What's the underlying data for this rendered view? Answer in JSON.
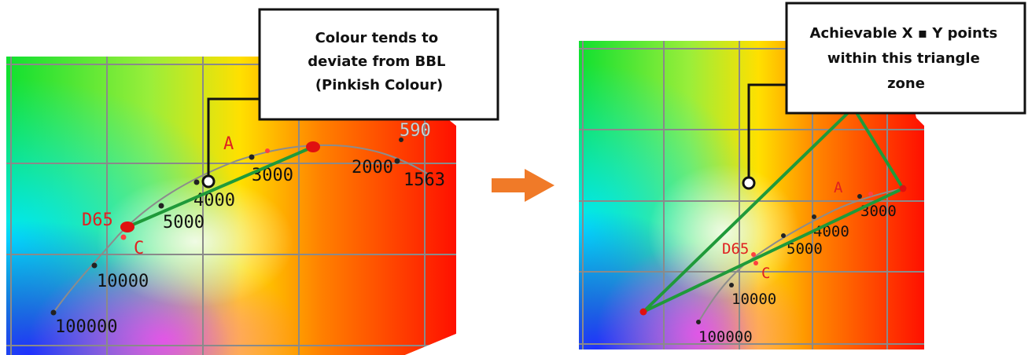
{
  "left_panel": {
    "callout": [
      "Colour tends to",
      "deviate from BBL",
      "(Pinkish Colour)"
    ],
    "labels": {
      "wl_590": "590",
      "wl_1563": "1563",
      "temp_2000": "2000",
      "temp_3000": "3000",
      "temp_4000": "4000",
      "temp_5000": "5000",
      "temp_10000": "10000",
      "temp_100000": "100000",
      "point_a": "A",
      "point_d65": "D65",
      "point_c": "C"
    }
  },
  "right_panel": {
    "callout": [
      "Achievable X ▪ Y points",
      "within this triangle",
      "zone"
    ],
    "labels": {
      "temp_3000": "3000",
      "temp_4000": "4000",
      "temp_5000": "5000",
      "temp_10000": "10000",
      "temp_100000": "100000",
      "point_a": "A",
      "point_d65": "D65",
      "point_c": "C"
    }
  },
  "colors": {
    "green_line": "#1f9a3a",
    "marker_red": "#e01010",
    "label_red": "#e02020",
    "arrow": "#f07a28",
    "grid": "#8a8a8a"
  }
}
